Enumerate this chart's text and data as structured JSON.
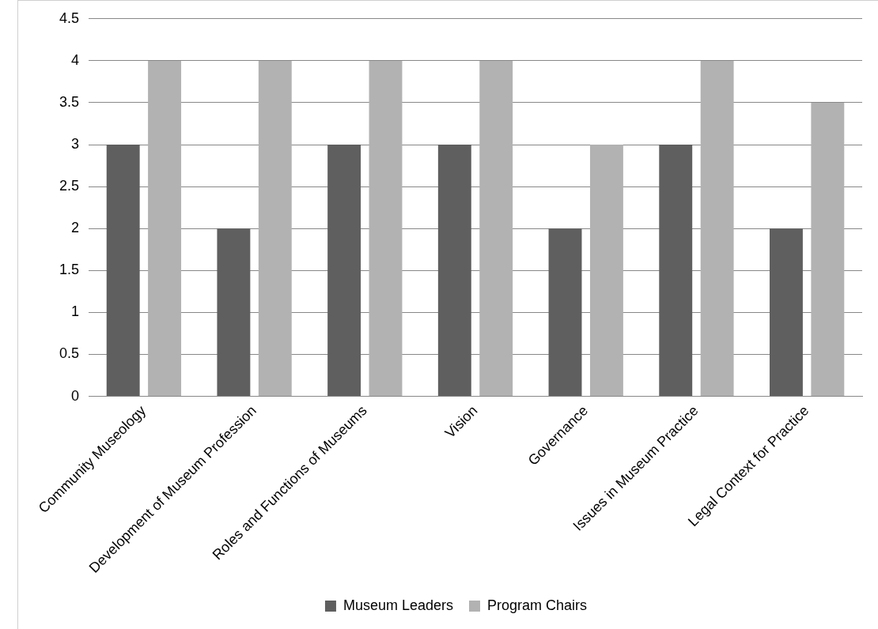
{
  "chart_data": {
    "type": "bar",
    "categories": [
      "Community Museology",
      "Development of Museum Profession",
      "Roles and Functions of Museums",
      "Vision",
      "Governance",
      "Issues in Museum Practice",
      "Legal Context for Practice"
    ],
    "series": [
      {
        "name": "Museum Leaders",
        "color": "#5f5f5f",
        "values": [
          3,
          2,
          3,
          3,
          2,
          3,
          2
        ]
      },
      {
        "name": "Program Chairs",
        "color": "#b2b2b2",
        "values": [
          4,
          4,
          4,
          4,
          3,
          4,
          3.5
        ]
      }
    ],
    "ylim": [
      0,
      4.5
    ],
    "yticks": [
      0,
      0.5,
      1,
      1.5,
      2,
      2.5,
      3,
      3.5,
      4,
      4.5
    ],
    "grid": "y",
    "legend": "bottom"
  }
}
